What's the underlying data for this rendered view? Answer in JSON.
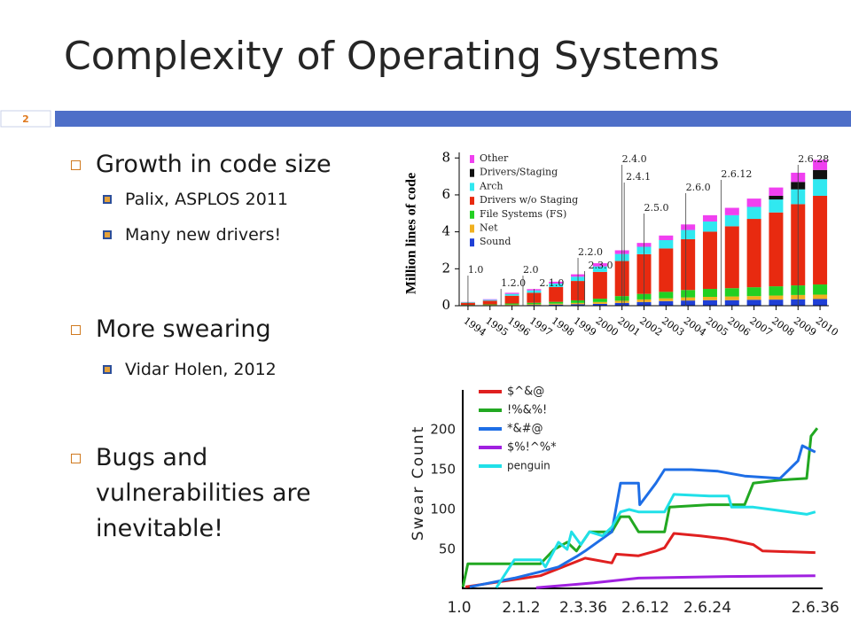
{
  "slide": {
    "title": "Complexity of Operating Systems",
    "page_number": "2",
    "bullets": [
      {
        "text": "Growth in code size",
        "level": 1
      },
      {
        "text": "Palix, ASPLOS 2011",
        "level": 2
      },
      {
        "text": "Many new drivers!",
        "level": 2
      },
      {
        "text": "More swearing",
        "level": 1
      },
      {
        "text": "Vidar Holen, 2012",
        "level": 2
      },
      {
        "text": "Bugs and vulnerabilities are inevitable!",
        "level": 1
      }
    ]
  },
  "chart_data": [
    {
      "type": "stacked_bar",
      "ylabel": "Million lines of code",
      "x": [
        1994,
        1995,
        1996,
        1997,
        1998,
        1999,
        2000,
        2001,
        2002,
        2003,
        2004,
        2005,
        2006,
        2007,
        2008,
        2009,
        2010
      ],
      "xlim": [
        1993.6,
        2010.4
      ],
      "xticks": [
        1994,
        1995,
        1996,
        1997,
        1998,
        1999,
        2000,
        2001,
        2002,
        2003,
        2004,
        2005,
        2006,
        2007,
        2008,
        2009,
        2010
      ],
      "ylim": [
        0,
        8.3
      ],
      "yticks": [
        0,
        2,
        4,
        6,
        8
      ],
      "series": [
        {
          "name": "Sound",
          "color": "#1f3fd6",
          "values": [
            0.01,
            0.02,
            0.03,
            0.04,
            0.06,
            0.08,
            0.1,
            0.15,
            0.2,
            0.25,
            0.28,
            0.3,
            0.3,
            0.32,
            0.33,
            0.35,
            0.36
          ]
        },
        {
          "name": "Net",
          "color": "#f0b020",
          "values": [
            0.01,
            0.02,
            0.03,
            0.04,
            0.05,
            0.07,
            0.1,
            0.12,
            0.14,
            0.15,
            0.17,
            0.18,
            0.2,
            0.2,
            0.22,
            0.23,
            0.24
          ]
        },
        {
          "name": "File Systems (FS)",
          "color": "#22d022",
          "values": [
            0.02,
            0.03,
            0.06,
            0.08,
            0.1,
            0.14,
            0.18,
            0.25,
            0.3,
            0.35,
            0.4,
            0.43,
            0.45,
            0.48,
            0.5,
            0.52,
            0.55
          ]
        },
        {
          "name": "Drivers w/o Staging",
          "color": "#e82a10",
          "values": [
            0.12,
            0.2,
            0.42,
            0.54,
            0.8,
            1.05,
            1.45,
            1.9,
            2.15,
            2.35,
            2.75,
            3.1,
            3.35,
            3.7,
            4.0,
            4.4,
            4.8
          ]
        },
        {
          "name": "Arch",
          "color": "#30e8f0",
          "values": [
            0.03,
            0.05,
            0.1,
            0.13,
            0.19,
            0.23,
            0.3,
            0.38,
            0.4,
            0.45,
            0.5,
            0.55,
            0.6,
            0.65,
            0.7,
            0.8,
            0.9
          ]
        },
        {
          "name": "Drivers/Staging",
          "color": "#111111",
          "values": [
            0,
            0,
            0,
            0,
            0,
            0,
            0,
            0,
            0,
            0,
            0,
            0,
            0,
            0,
            0.2,
            0.4,
            0.5
          ]
        },
        {
          "name": "Other",
          "color": "#f040f0",
          "values": [
            0.01,
            0.03,
            0.06,
            0.07,
            0.1,
            0.13,
            0.17,
            0.2,
            0.21,
            0.25,
            0.3,
            0.34,
            0.4,
            0.45,
            0.45,
            0.5,
            0.55
          ]
        }
      ],
      "annotations": [
        {
          "text": "1.0",
          "x": 1994
        },
        {
          "text": "1.2.0",
          "x": 1995.5
        },
        {
          "text": "2.0",
          "x": 1996.5
        },
        {
          "text": "2.1.0",
          "x": 1997
        },
        {
          "text": "2.2.0",
          "x": 1999
        },
        {
          "text": "2.3.0",
          "x": 1999.3
        },
        {
          "text": "2.4.0",
          "x": 2001
        },
        {
          "text": "2.4.1",
          "x": 2001.1
        },
        {
          "text": "2.5.0",
          "x": 2002
        },
        {
          "text": "2.6.0",
          "x": 2003.9
        },
        {
          "text": "2.6.12",
          "x": 2005.5
        },
        {
          "text": "2.6.28",
          "x": 2009
        }
      ]
    },
    {
      "type": "line",
      "ylabel": "Swear Count",
      "xlim": [
        0,
        5.8
      ],
      "xticks": [
        {
          "value": 0,
          "label": "1.0"
        },
        {
          "value": 1,
          "label": "2.1.2"
        },
        {
          "value": 2,
          "label": "2.3.36"
        },
        {
          "value": 3,
          "label": "2.6.12"
        },
        {
          "value": 4,
          "label": "2.6.24"
        },
        {
          "value": 5.74,
          "label": "2.6.36"
        }
      ],
      "ylim": [
        0,
        250
      ],
      "yticks": [
        50,
        100,
        150,
        200
      ],
      "series": [
        {
          "name": "$^&@",
          "color": "#e02020",
          "x": [
            0.1,
            1.31,
            2.03,
            2.46,
            2.53,
            2.89,
            3.17,
            3.31,
            3.46,
            3.89,
            4.31,
            4.74,
            4.89,
            5.74
          ],
          "values": [
            3,
            17,
            39,
            33,
            44,
            42,
            48,
            52,
            70,
            67,
            63,
            56,
            48,
            46
          ]
        },
        {
          "name": "!%&%!",
          "color": "#22a822",
          "x": [
            0.06,
            0.14,
            1.31,
            1.53,
            1.74,
            1.89,
            2.1,
            2.46,
            2.6,
            2.74,
            2.89,
            3.31,
            3.39,
            4.03,
            4.6,
            4.74,
            5.17,
            5.6,
            5.67,
            5.77
          ],
          "values": [
            3,
            32,
            32,
            50,
            59,
            48,
            72,
            72,
            91,
            91,
            72,
            72,
            103,
            106,
            106,
            133,
            137,
            139,
            192,
            202
          ]
        },
        {
          "name": "*&#@",
          "color": "#1e6ee6",
          "x": [
            0.17,
            0.89,
            1.31,
            1.6,
            1.89,
            2.03,
            2.46,
            2.6,
            2.89,
            2.91,
            3.17,
            3.31,
            3.74,
            4.17,
            4.6,
            5.17,
            5.46,
            5.53,
            5.74
          ],
          "values": [
            3,
            14,
            22,
            28,
            41,
            48,
            72,
            133,
            133,
            106,
            133,
            150,
            150,
            148,
            142,
            139,
            161,
            180,
            172
          ]
        },
        {
          "name": "$%!^%*",
          "color": "#a020e0",
          "x": [
            1.24,
            2.17,
            2.89,
            4.31,
            5.74
          ],
          "values": [
            2,
            8,
            14,
            16,
            17
          ]
        },
        {
          "name": "penguin",
          "color": "#20e0e8",
          "x": [
            0.6,
            0.89,
            1.31,
            1.39,
            1.6,
            1.74,
            1.81,
            1.96,
            2.1,
            2.31,
            2.46,
            2.6,
            2.74,
            2.89,
            3.31,
            3.46,
            4.03,
            4.34,
            4.39,
            4.74,
            5.03,
            5.6,
            5.74
          ],
          "values": [
            2,
            37,
            37,
            28,
            59,
            50,
            72,
            56,
            72,
            67,
            78,
            97,
            100,
            97,
            97,
            119,
            117,
            117,
            103,
            103,
            100,
            94,
            97
          ]
        }
      ]
    }
  ]
}
